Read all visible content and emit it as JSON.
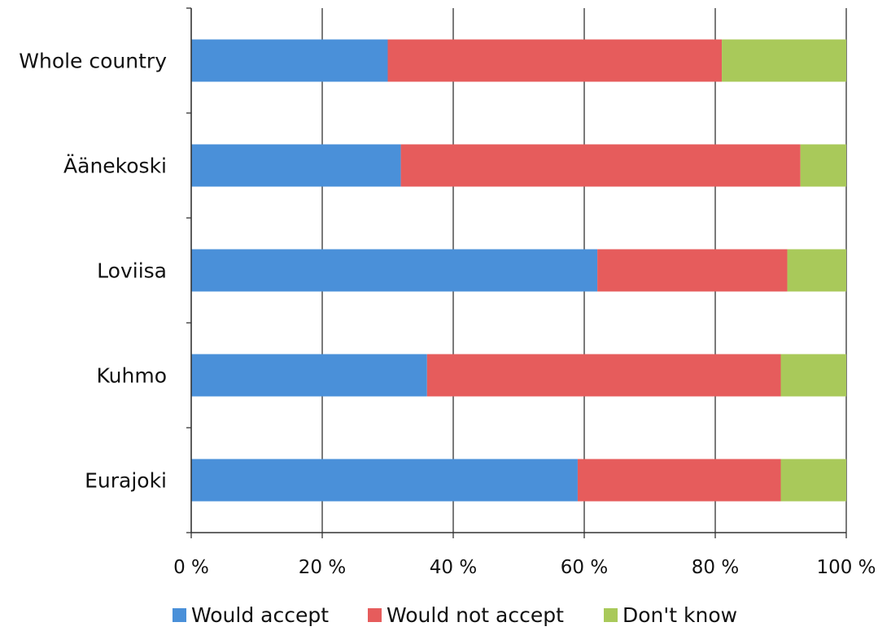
{
  "chart_data": {
    "type": "bar",
    "orientation": "horizontal",
    "stacked": "percent",
    "categories": [
      "Whole country",
      "Äänekoski",
      "Loviisa",
      "Kuhmo",
      "Eurajoki"
    ],
    "series": [
      {
        "name": "Would accept",
        "color": "#4a90d9",
        "values": [
          30,
          32,
          62,
          36,
          59
        ]
      },
      {
        "name": "Would not accept",
        "color": "#e65c5c",
        "values": [
          51,
          61,
          29,
          54,
          31
        ]
      },
      {
        "name": "Don't know",
        "color": "#a9c95a",
        "values": [
          19,
          7,
          9,
          10,
          10
        ]
      }
    ],
    "xlim": [
      0,
      100
    ],
    "x_ticks": [
      0,
      20,
      40,
      60,
      80,
      100
    ],
    "x_tick_labels": [
      "0 %",
      "20 %",
      "40 %",
      "60 %",
      "80 %",
      "100 %"
    ],
    "gridlines": "vertical",
    "legend_position": "bottom",
    "title": "",
    "xlabel": "",
    "ylabel": ""
  }
}
